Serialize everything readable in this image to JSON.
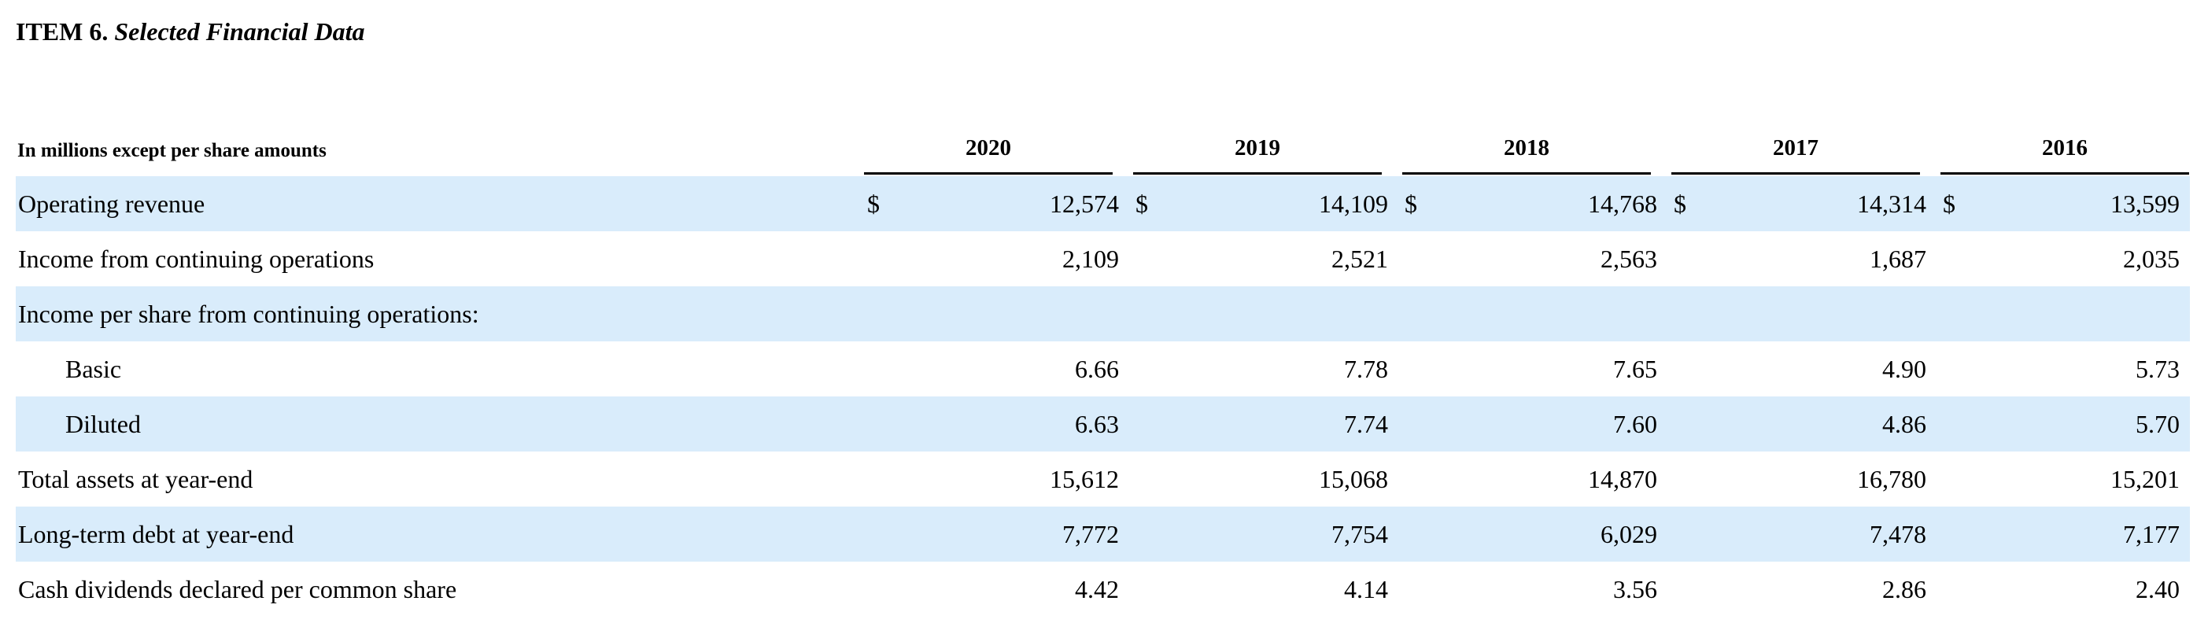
{
  "section": {
    "item": "ITEM 6.",
    "title": "Selected Financial Data"
  },
  "units_label": "In millions except per share amounts",
  "years": [
    "2020",
    "2019",
    "2018",
    "2017",
    "2016"
  ],
  "currency_symbol": "$",
  "rows": [
    {
      "label": "Operating revenue",
      "values": [
        "12,574",
        "14,109",
        "14,768",
        "14,314",
        "13,599"
      ]
    },
    {
      "label": "Income from continuing operations",
      "values": [
        "2,109",
        "2,521",
        "2,563",
        "1,687",
        "2,035"
      ]
    },
    {
      "label": "Income per share from continuing operations:",
      "values": [
        "",
        "",
        "",
        "",
        ""
      ]
    },
    {
      "label": "Basic",
      "values": [
        "6.66",
        "7.78",
        "7.65",
        "4.90",
        "5.73"
      ]
    },
    {
      "label": "Diluted",
      "values": [
        "6.63",
        "7.74",
        "7.60",
        "4.86",
        "5.70"
      ]
    },
    {
      "label": "Total assets at year-end",
      "values": [
        "15,612",
        "15,068",
        "14,870",
        "16,780",
        "15,201"
      ]
    },
    {
      "label": "Long-term debt at year-end",
      "values": [
        "7,772",
        "7,754",
        "6,029",
        "7,478",
        "7,177"
      ]
    },
    {
      "label": "Cash dividends declared per common share",
      "values": [
        "4.42",
        "4.14",
        "3.56",
        "2.86",
        "2.40"
      ]
    }
  ],
  "colors": {
    "row_shading": "#d9ecfb",
    "rule": "#000000"
  }
}
